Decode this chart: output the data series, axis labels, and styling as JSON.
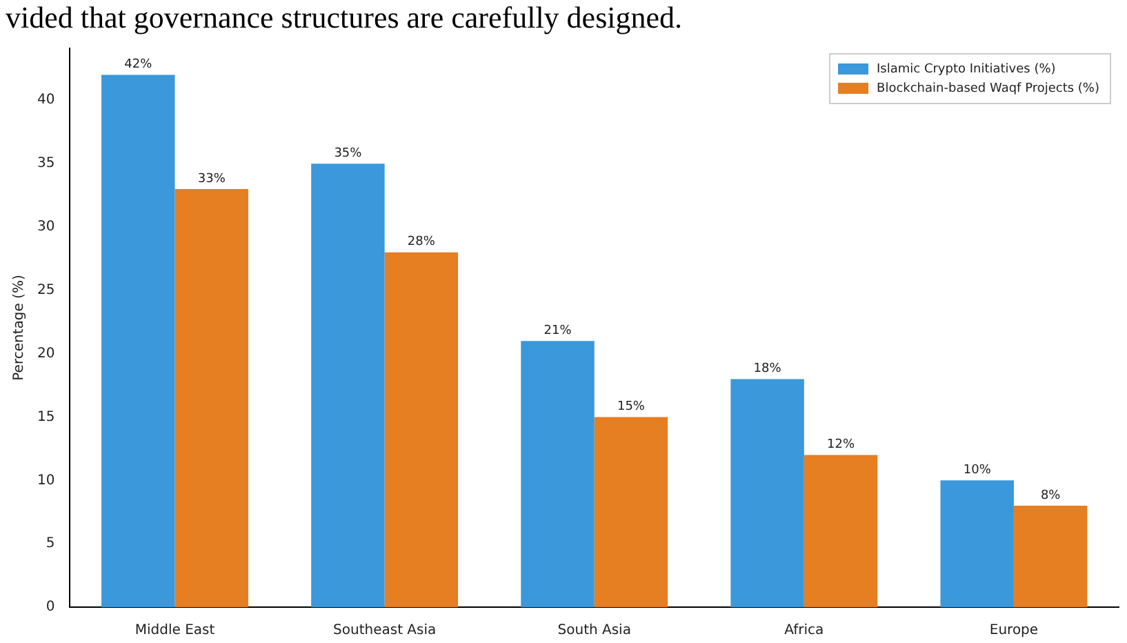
{
  "chart_data": {
    "type": "bar",
    "ylabel": "Percentage (%)",
    "annotations": [
      "vided that governance structures are carefully designed."
    ],
    "categories": [
      "Middle East",
      "Southeast Asia",
      "South Asia",
      "Africa",
      "Europe"
    ],
    "series": [
      {
        "name": "Islamic Crypto Initiatives (%)",
        "color": "#3a98db",
        "values": [
          42,
          35,
          21,
          18,
          10
        ],
        "value_labels": [
          "42%",
          "35%",
          "21%",
          "18%",
          "10%"
        ]
      },
      {
        "name": "Blockchain-based Waqf Projects (%)",
        "color": "#e67e22",
        "values": [
          33,
          28,
          15,
          12,
          8
        ],
        "value_labels": [
          "33%",
          "28%",
          "15%",
          "12%",
          "8%"
        ]
      }
    ],
    "ylim": [
      0,
      44.1
    ],
    "yticks": [
      0,
      5,
      10,
      15,
      20,
      25,
      30,
      35,
      40
    ],
    "grid": false,
    "legend": "top right"
  }
}
